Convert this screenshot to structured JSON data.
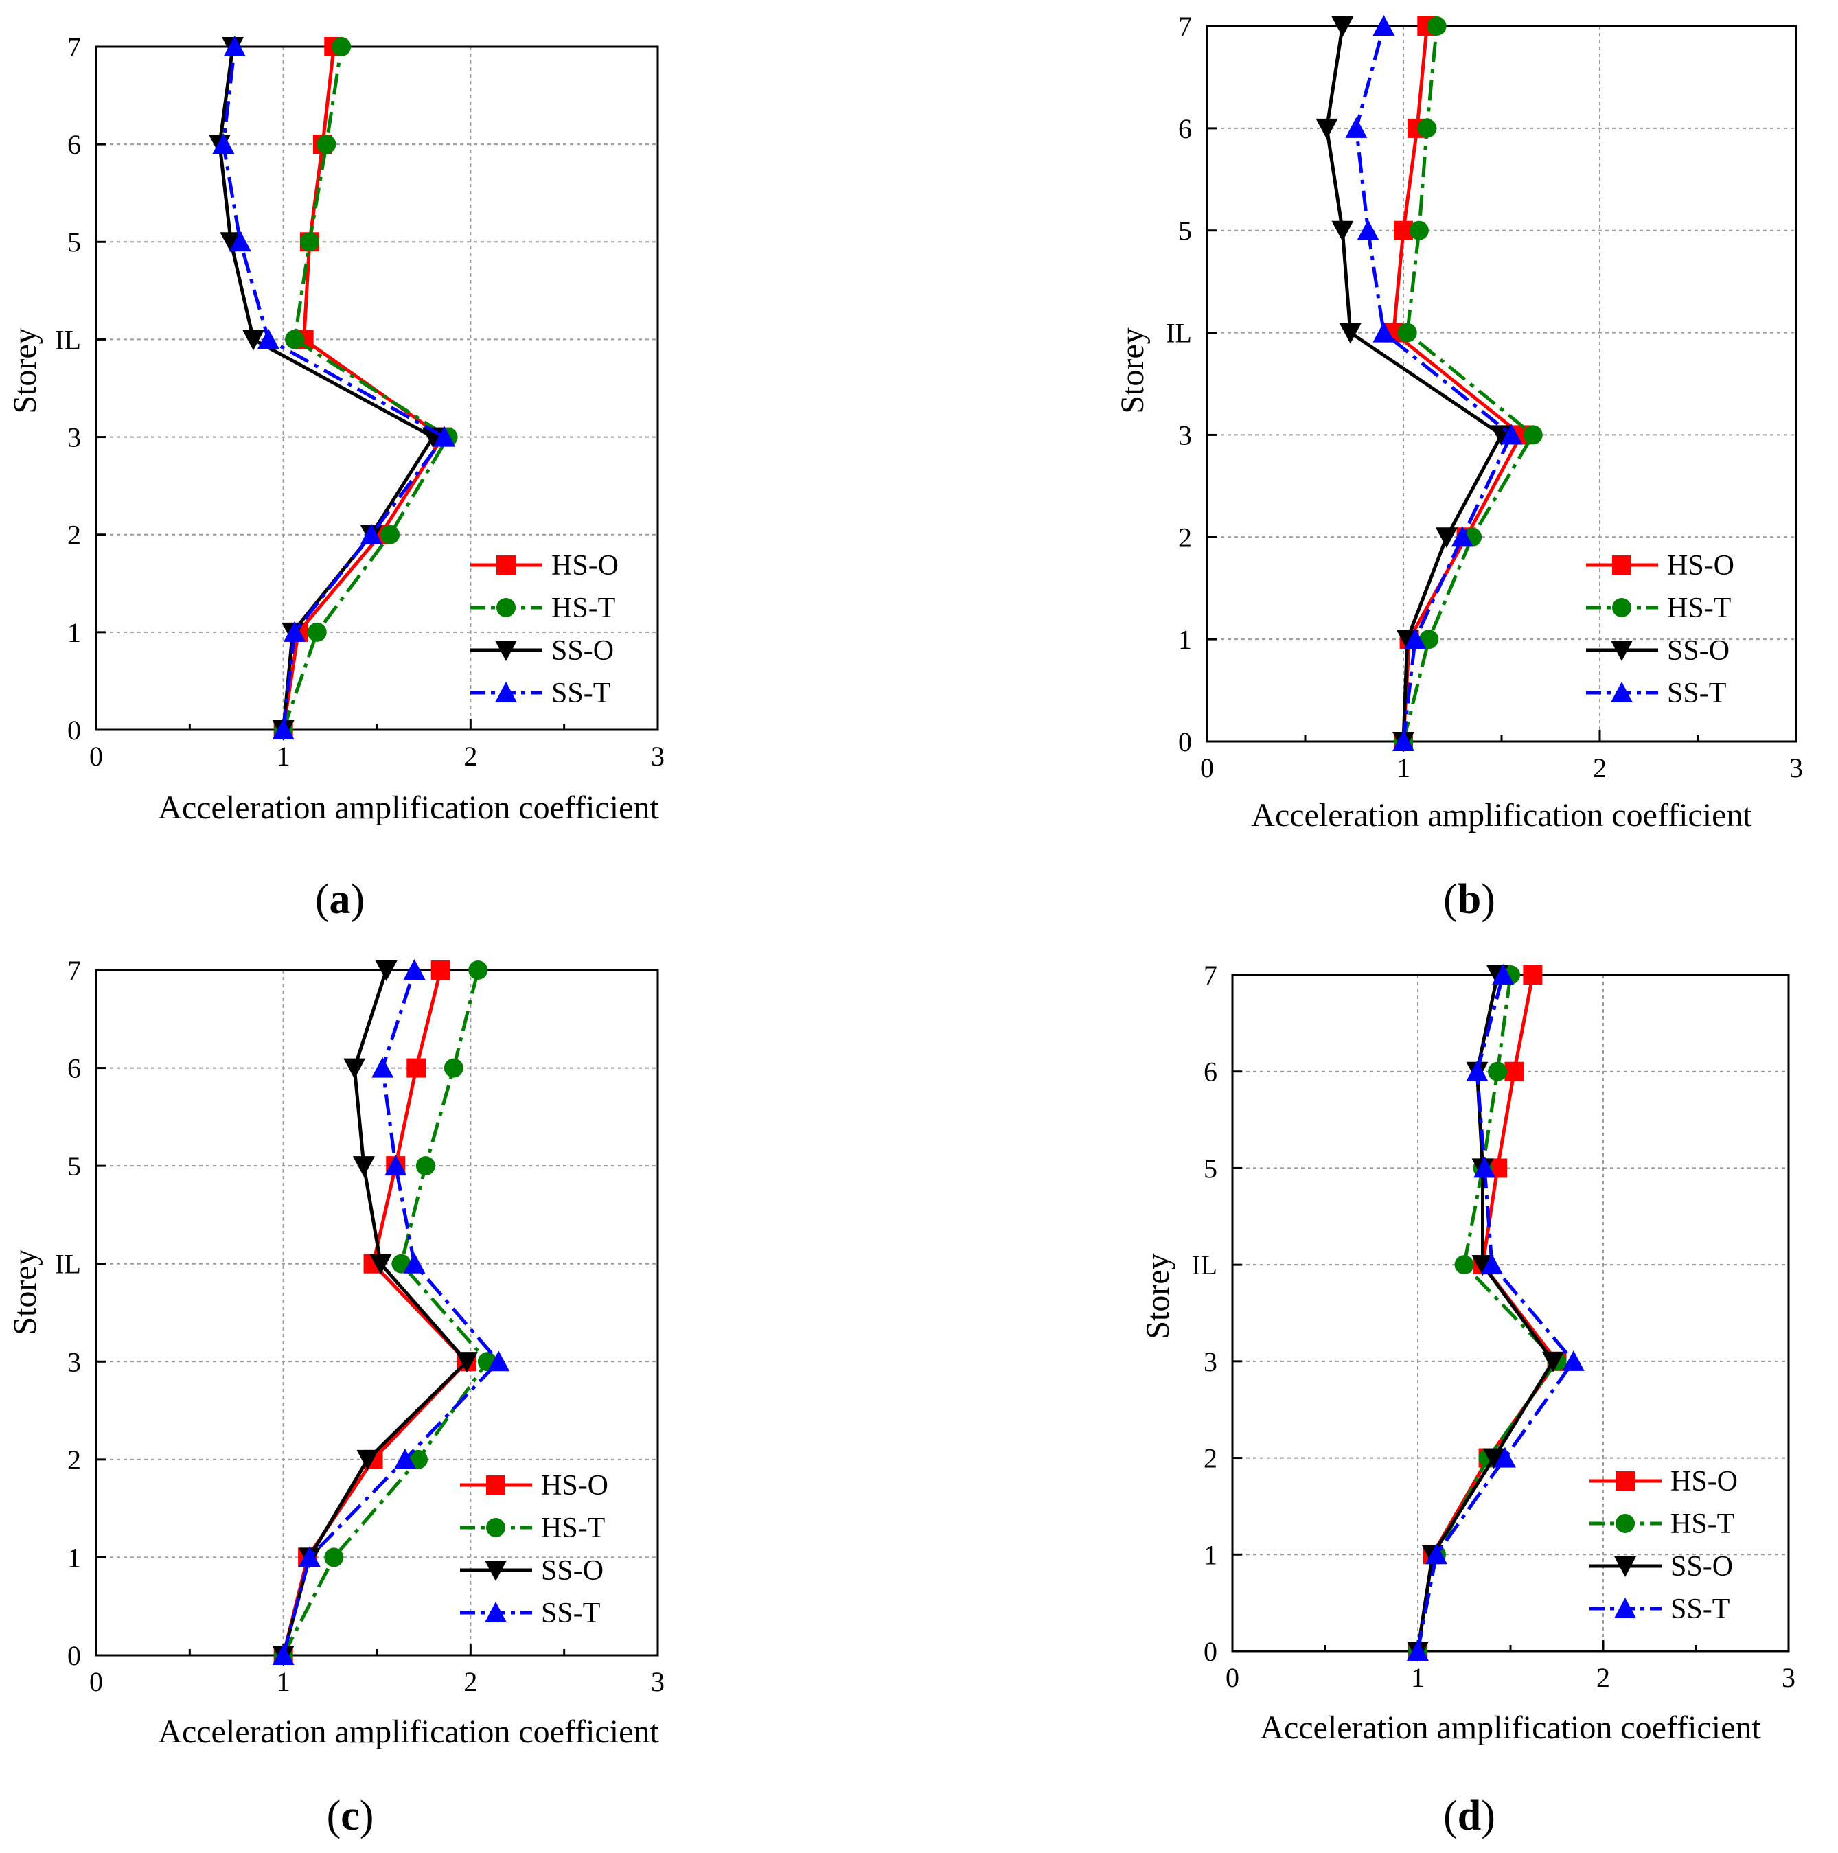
{
  "y_categories": [
    "0",
    "1",
    "2",
    "3",
    "IL",
    "5",
    "6",
    "7"
  ],
  "series_styles": [
    {
      "name": "HS-O",
      "color": "#ff0000",
      "marker": "square",
      "dash": "solid"
    },
    {
      "name": "HS-T",
      "color": "#008000",
      "marker": "circle",
      "dash": "dashdot"
    },
    {
      "name": "SS-O",
      "color": "#000000",
      "marker": "triangle-down",
      "dash": "solid"
    },
    {
      "name": "SS-T",
      "color": "#0000ff",
      "marker": "triangle-up",
      "dash": "dashdot"
    }
  ],
  "chart_data": [
    {
      "type": "line",
      "panel_label": {
        "open": "(",
        "letter": "a",
        "close": ")"
      },
      "xlabel": "Acceleration amplification coefficient",
      "ylabel": "Storey",
      "xlim": [
        0,
        3
      ],
      "xticks": [
        "0",
        "1",
        "2",
        "3"
      ],
      "y_categories": [
        "0",
        "1",
        "2",
        "3",
        "IL",
        "5",
        "6",
        "7"
      ],
      "series": [
        {
          "name": "HS-O",
          "values": [
            1.0,
            1.08,
            1.52,
            1.85,
            1.11,
            1.14,
            1.21,
            1.27
          ]
        },
        {
          "name": "HS-T",
          "values": [
            1.0,
            1.18,
            1.57,
            1.88,
            1.06,
            1.14,
            1.23,
            1.31
          ]
        },
        {
          "name": "SS-O",
          "values": [
            1.0,
            1.05,
            1.47,
            1.8,
            0.84,
            0.72,
            0.66,
            0.73
          ]
        },
        {
          "name": "SS-T",
          "values": [
            1.0,
            1.06,
            1.47,
            1.86,
            0.92,
            0.77,
            0.68,
            0.74
          ]
        }
      ]
    },
    {
      "type": "line",
      "panel_label": {
        "open": "(",
        "letter": "b",
        "close": ")"
      },
      "xlabel": "Acceleration amplification coefficient",
      "ylabel": "Storey",
      "xlim": [
        0,
        3
      ],
      "xticks": [
        "0",
        "1",
        "2",
        "3"
      ],
      "y_categories": [
        "0",
        "1",
        "2",
        "3",
        "IL",
        "5",
        "6",
        "7"
      ],
      "series": [
        {
          "name": "HS-O",
          "values": [
            1.0,
            1.03,
            1.32,
            1.6,
            0.95,
            1.0,
            1.07,
            1.12
          ]
        },
        {
          "name": "HS-T",
          "values": [
            1.0,
            1.13,
            1.35,
            1.66,
            1.02,
            1.08,
            1.12,
            1.17
          ]
        },
        {
          "name": "SS-O",
          "values": [
            1.0,
            1.02,
            1.22,
            1.5,
            0.73,
            0.69,
            0.61,
            0.69
          ]
        },
        {
          "name": "SS-T",
          "values": [
            1.0,
            1.06,
            1.3,
            1.55,
            0.9,
            0.82,
            0.76,
            0.9
          ]
        }
      ]
    },
    {
      "type": "line",
      "panel_label": {
        "open": "(",
        "letter": "c",
        "close": ")"
      },
      "xlabel": "Acceleration amplification coefficient",
      "ylabel": "Storey",
      "xlim": [
        0,
        3
      ],
      "xticks": [
        "0",
        "1",
        "2",
        "3"
      ],
      "y_categories": [
        "0",
        "1",
        "2",
        "3",
        "IL",
        "5",
        "6",
        "7"
      ],
      "series": [
        {
          "name": "HS-O",
          "values": [
            1.0,
            1.13,
            1.48,
            1.98,
            1.48,
            1.6,
            1.71,
            1.84
          ]
        },
        {
          "name": "HS-T",
          "values": [
            1.0,
            1.27,
            1.72,
            2.09,
            1.63,
            1.76,
            1.91,
            2.04
          ]
        },
        {
          "name": "SS-O",
          "values": [
            1.0,
            1.14,
            1.45,
            1.98,
            1.52,
            1.43,
            1.38,
            1.55
          ]
        },
        {
          "name": "SS-T",
          "values": [
            1.0,
            1.14,
            1.65,
            2.15,
            1.7,
            1.6,
            1.53,
            1.7
          ]
        }
      ]
    },
    {
      "type": "line",
      "panel_label": {
        "open": "(",
        "letter": "d",
        "close": ")"
      },
      "xlabel": "Acceleration amplification coefficient",
      "ylabel": "Storey",
      "xlim": [
        0,
        3
      ],
      "xticks": [
        "0",
        "1",
        "2",
        "3"
      ],
      "y_categories": [
        "0",
        "1",
        "2",
        "3",
        "IL",
        "5",
        "6",
        "7"
      ],
      "series": [
        {
          "name": "HS-O",
          "values": [
            1.0,
            1.08,
            1.38,
            1.75,
            1.35,
            1.43,
            1.52,
            1.62
          ]
        },
        {
          "name": "HS-T",
          "values": [
            1.0,
            1.1,
            1.38,
            1.75,
            1.25,
            1.35,
            1.43,
            1.5
          ]
        },
        {
          "name": "SS-O",
          "values": [
            1.0,
            1.08,
            1.41,
            1.73,
            1.35,
            1.35,
            1.32,
            1.43
          ]
        },
        {
          "name": "SS-T",
          "values": [
            1.0,
            1.1,
            1.47,
            1.84,
            1.4,
            1.36,
            1.32,
            1.46
          ]
        }
      ]
    }
  ]
}
